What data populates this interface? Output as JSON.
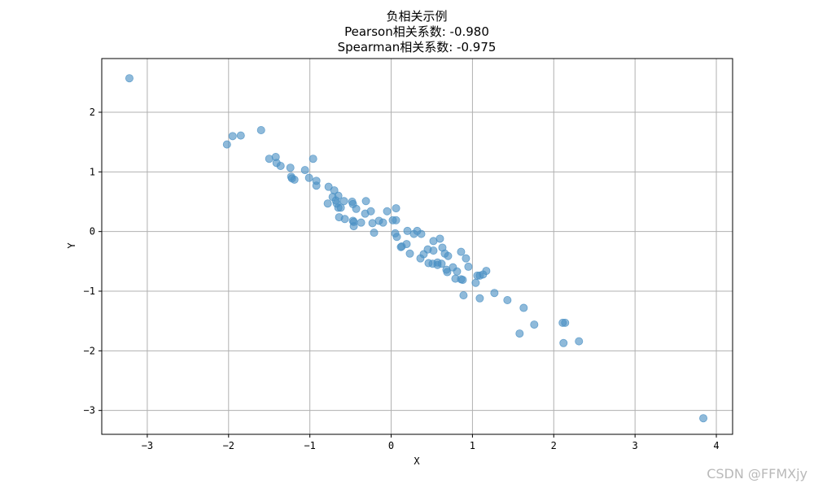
{
  "chart_data": {
    "type": "scatter",
    "title_lines": [
      "负相关示例",
      "Pearson相关系数: -0.980",
      "Spearman相关系数: -0.975"
    ],
    "xlabel": "X",
    "ylabel": "Y",
    "xlim": [
      -3.56,
      4.2
    ],
    "ylim": [
      -3.4,
      2.9
    ],
    "xticks": [
      -3,
      -2,
      -1,
      0,
      1,
      2,
      3,
      4
    ],
    "yticks": [
      -3,
      -2,
      -1,
      0,
      1,
      2
    ],
    "xtick_labels": [
      "−3",
      "−2",
      "−1",
      "0",
      "1",
      "2",
      "3",
      "4"
    ],
    "ytick_labels": [
      "−3",
      "−2",
      "−1",
      "0",
      "1",
      "2"
    ],
    "grid": true,
    "marker_color": "#4a90c4",
    "points": [
      [
        -3.22,
        2.57
      ],
      [
        -2.02,
        1.46
      ],
      [
        -1.95,
        1.6
      ],
      [
        -1.85,
        1.61
      ],
      [
        -1.6,
        1.7
      ],
      [
        -1.5,
        1.22
      ],
      [
        -1.42,
        1.25
      ],
      [
        -1.41,
        1.15
      ],
      [
        -1.36,
        1.1
      ],
      [
        -1.24,
        1.07
      ],
      [
        -1.23,
        0.92
      ],
      [
        -1.22,
        0.89
      ],
      [
        -1.19,
        0.87
      ],
      [
        -1.06,
        1.03
      ],
      [
        -1.01,
        0.9
      ],
      [
        -0.96,
        1.22
      ],
      [
        -0.92,
        0.77
      ],
      [
        -0.92,
        0.85
      ],
      [
        -0.78,
        0.47
      ],
      [
        -0.77,
        0.75
      ],
      [
        -0.72,
        0.58
      ],
      [
        -0.7,
        0.69
      ],
      [
        -0.68,
        0.52
      ],
      [
        -0.67,
        0.47
      ],
      [
        -0.65,
        0.6
      ],
      [
        -0.65,
        0.4
      ],
      [
        -0.64,
        0.24
      ],
      [
        -0.62,
        0.4
      ],
      [
        -0.58,
        0.51
      ],
      [
        -0.57,
        0.21
      ],
      [
        -0.48,
        0.5
      ],
      [
        -0.47,
        0.46
      ],
      [
        -0.46,
        0.16
      ],
      [
        -0.47,
        0.18
      ],
      [
        -0.46,
        0.09
      ],
      [
        -0.43,
        0.38
      ],
      [
        -0.37,
        0.15
      ],
      [
        -0.31,
        0.51
      ],
      [
        -0.32,
        0.3
      ],
      [
        -0.25,
        0.34
      ],
      [
        -0.23,
        0.14
      ],
      [
        -0.21,
        -0.02
      ],
      [
        -0.15,
        0.18
      ],
      [
        -0.1,
        0.15
      ],
      [
        -0.05,
        0.34
      ],
      [
        0.02,
        0.19
      ],
      [
        0.06,
        0.19
      ],
      [
        0.06,
        0.39
      ],
      [
        0.05,
        -0.03
      ],
      [
        0.07,
        -0.09
      ],
      [
        0.12,
        -0.26
      ],
      [
        0.13,
        -0.25
      ],
      [
        0.19,
        -0.21
      ],
      [
        0.2,
        0.01
      ],
      [
        0.23,
        -0.37
      ],
      [
        0.28,
        -0.04
      ],
      [
        0.32,
        0.01
      ],
      [
        0.36,
        -0.45
      ],
      [
        0.37,
        -0.04
      ],
      [
        0.4,
        -0.38
      ],
      [
        0.45,
        -0.3
      ],
      [
        0.46,
        -0.53
      ],
      [
        0.51,
        -0.54
      ],
      [
        0.52,
        -0.32
      ],
      [
        0.52,
        -0.16
      ],
      [
        0.57,
        -0.56
      ],
      [
        0.57,
        -0.52
      ],
      [
        0.6,
        -0.12
      ],
      [
        0.62,
        -0.54
      ],
      [
        0.63,
        -0.27
      ],
      [
        0.66,
        -0.37
      ],
      [
        0.68,
        -0.64
      ],
      [
        0.69,
        -0.68
      ],
      [
        0.7,
        -0.41
      ],
      [
        0.76,
        -0.6
      ],
      [
        0.79,
        -0.79
      ],
      [
        0.81,
        -0.67
      ],
      [
        0.86,
        -0.34
      ],
      [
        0.86,
        -0.8
      ],
      [
        0.88,
        -0.81
      ],
      [
        0.89,
        -1.07
      ],
      [
        0.92,
        -0.45
      ],
      [
        0.95,
        -0.59
      ],
      [
        1.04,
        -0.86
      ],
      [
        1.06,
        -0.74
      ],
      [
        1.09,
        -0.74
      ],
      [
        1.09,
        -1.12
      ],
      [
        1.13,
        -0.72
      ],
      [
        1.17,
        -0.66
      ],
      [
        1.27,
        -1.03
      ],
      [
        1.43,
        -1.15
      ],
      [
        1.58,
        -1.71
      ],
      [
        1.63,
        -1.28
      ],
      [
        1.76,
        -1.56
      ],
      [
        2.11,
        -1.53
      ],
      [
        2.14,
        -1.53
      ],
      [
        2.12,
        -1.87
      ],
      [
        2.31,
        -1.84
      ],
      [
        3.84,
        -3.13
      ]
    ]
  },
  "watermark": "CSDN @FFMXjy"
}
